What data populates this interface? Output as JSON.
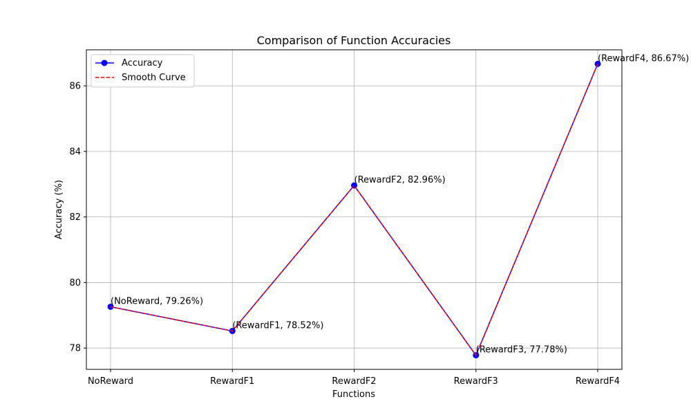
{
  "chart_data": {
    "type": "line",
    "title": "Comparison of Function Accuracies",
    "xlabel": "Functions",
    "ylabel": "Accuracy (%)",
    "categories": [
      "NoReward",
      "RewardF1",
      "RewardF2",
      "RewardF3",
      "RewardF4"
    ],
    "ylim": [
      77.35,
      87.1
    ],
    "yticks": [
      78,
      80,
      82,
      84,
      86
    ],
    "grid": true,
    "legend_position": "top-left",
    "series": [
      {
        "name": "Accuracy",
        "style": "solid-with-markers",
        "color": "#0000ff",
        "values": [
          79.26,
          78.52,
          82.96,
          77.78,
          86.67
        ]
      },
      {
        "name": "Smooth Curve",
        "style": "dashed",
        "color": "#ff0000",
        "values": [
          79.26,
          78.52,
          82.96,
          77.78,
          86.67
        ]
      }
    ],
    "annotations": [
      "(NoReward, 79.26%)",
      "(RewardF1, 78.52%)",
      "(RewardF2, 82.96%)",
      "(RewardF3, 77.78%)",
      "(RewardF4, 86.67%)"
    ]
  }
}
